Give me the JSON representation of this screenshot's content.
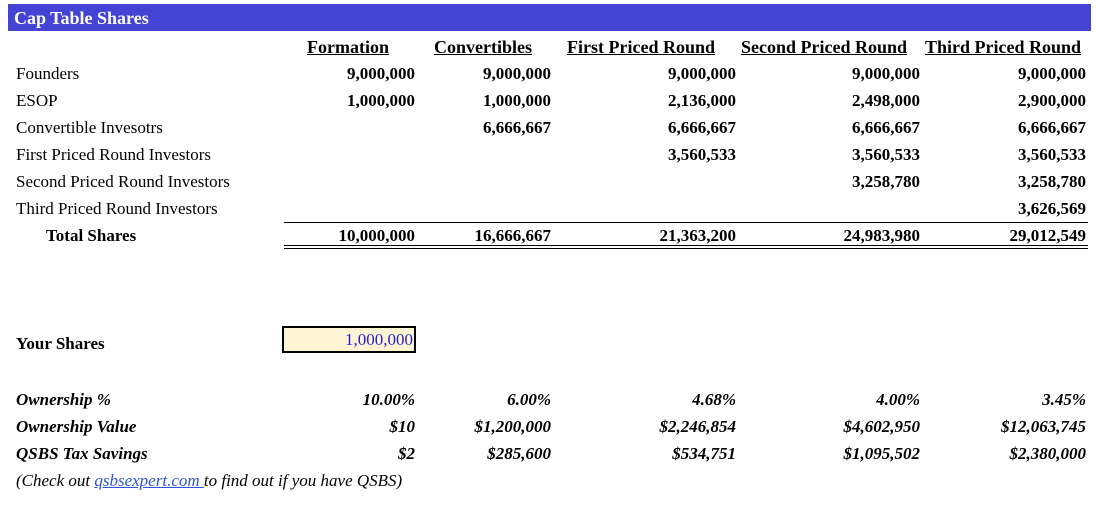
{
  "title": "Cap Table Shares",
  "columns": [
    "Formation",
    "Convertibles",
    "First Priced Round",
    "Second Priced Round",
    "Third Priced Round"
  ],
  "rows": [
    {
      "label": "Founders",
      "values": [
        "9,000,000",
        "9,000,000",
        "9,000,000",
        "9,000,000",
        "9,000,000"
      ]
    },
    {
      "label": "ESOP",
      "values": [
        "1,000,000",
        "1,000,000",
        "2,136,000",
        "2,498,000",
        "2,900,000"
      ]
    },
    {
      "label": "Convertible Invesotrs",
      "values": [
        "",
        "6,666,667",
        "6,666,667",
        "6,666,667",
        "6,666,667"
      ]
    },
    {
      "label": "First Priced Round Investors",
      "values": [
        "",
        "",
        "3,560,533",
        "3,560,533",
        "3,560,533"
      ]
    },
    {
      "label": "Second Priced Round Investors",
      "values": [
        "",
        "",
        "",
        "3,258,780",
        "3,258,780"
      ]
    },
    {
      "label": "Third Priced Round Investors",
      "values": [
        "",
        "",
        "",
        "",
        "3,626,569"
      ]
    }
  ],
  "total": {
    "label": "Total Shares",
    "values": [
      "10,000,000",
      "16,666,667",
      "21,363,200",
      "24,983,980",
      "29,012,549"
    ]
  },
  "your_shares": {
    "label": "Your Shares",
    "value": "1,000,000"
  },
  "metrics": [
    {
      "label": "Ownership %",
      "values": [
        "10.00%",
        "6.00%",
        "4.68%",
        "4.00%",
        "3.45%"
      ]
    },
    {
      "label": "Ownership Value",
      "values": [
        "$10",
        "$1,200,000",
        "$2,246,854",
        "$4,602,950",
        "$12,063,745"
      ]
    },
    {
      "label": "QSBS Tax Savings",
      "values": [
        "$2",
        "$285,600",
        "$534,751",
        "$1,095,502",
        "$2,380,000"
      ]
    }
  ],
  "note": {
    "prefix": "(Check out ",
    "link_text": "qsbsexpert.com ",
    "suffix": "to find out if you have QSBS)"
  },
  "colors": {
    "title_bar": "#4444d4",
    "input_bg": "#fff4d4",
    "input_text": "#1f1fd4",
    "link": "#2b56d6"
  }
}
